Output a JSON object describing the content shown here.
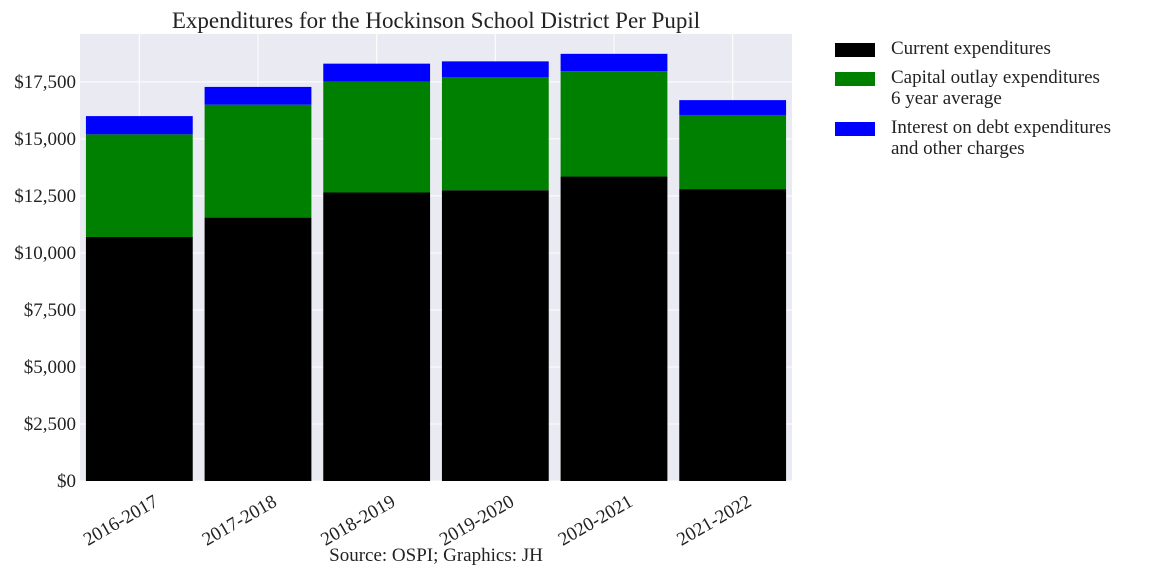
{
  "chart_data": {
    "type": "bar",
    "stacked": true,
    "title": "Expenditures for the Hockinson School District Per Pupil",
    "caption": "Source: OSPI; Graphics: JH",
    "categories": [
      "2016-2017",
      "2017-2018",
      "2018-2019",
      "2019-2020",
      "2020-2021",
      "2021-2022"
    ],
    "series": [
      {
        "name": "Current expenditures",
        "color": "#000000",
        "values": [
          10700,
          11550,
          12650,
          12750,
          13350,
          12800
        ]
      },
      {
        "name": "Capital outlay expenditures\n6 year average",
        "color": "#008000",
        "values": [
          4500,
          4950,
          4870,
          4950,
          4620,
          3250
        ]
      },
      {
        "name": "Interest on debt expenditures\nand other charges",
        "color": "#0000ff",
        "values": [
          800,
          780,
          780,
          700,
          760,
          650
        ]
      }
    ],
    "ylim": [
      0,
      19600
    ],
    "yticks": [
      0,
      2500,
      5000,
      7500,
      10000,
      12500,
      15000,
      17500
    ],
    "ytick_labels": [
      "$0",
      "$2,500",
      "$5,000",
      "$7,500",
      "$10,000",
      "$12,500",
      "$15,000",
      "$17,500"
    ],
    "xlabel": "",
    "ylabel": "",
    "grid": true,
    "legend_position": "outside-right"
  }
}
